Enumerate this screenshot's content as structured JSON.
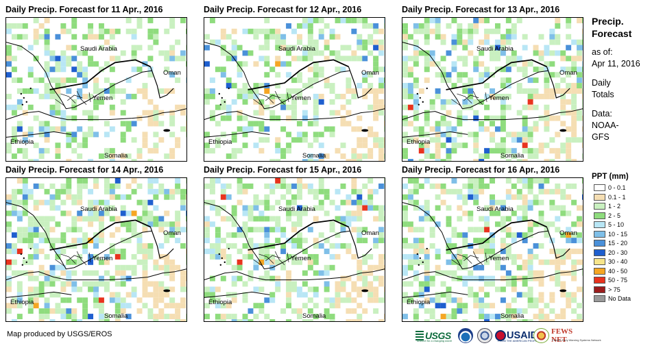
{
  "panels": [
    {
      "title": "Daily Precip. Forecast for 11 Apr., 2016"
    },
    {
      "title": "Daily Precip. Forecast for 12 Apr., 2016"
    },
    {
      "title": "Daily Precip. Forecast for 13 Apr., 2016"
    },
    {
      "title": "Daily Precip. Forecast for 14 Apr., 2016"
    },
    {
      "title": "Daily Precip. Forecast for 15 Apr., 2016"
    },
    {
      "title": "Daily Precip. Forecast for 16 Apr., 2016"
    }
  ],
  "map_labels": {
    "saudi": "Saudi Arabia",
    "oman": "Oman",
    "yemen": "Yemen",
    "ethiopia": "Ethiopia",
    "somalia": "Somalia"
  },
  "legend": {
    "title_line1": "Precip.",
    "title_line2": "Forecast",
    "as_of_label": "as of:",
    "as_of_date": "Apr 11, 2016",
    "daily_line1": "Daily",
    "daily_line2": "Totals",
    "data_line1": "Data:",
    "data_line2": "NOAA-",
    "data_line3": "GFS",
    "ppt_title": "PPT (mm)",
    "classes": [
      {
        "label": "0 - 0.1",
        "color": "#ffffff"
      },
      {
        "label": "0.1 - 1",
        "color": "#f5deb3"
      },
      {
        "label": "1 - 2",
        "color": "#c9f0c0"
      },
      {
        "label": "2 - 5",
        "color": "#8fdc7e"
      },
      {
        "label": "5 - 10",
        "color": "#b8e6f5"
      },
      {
        "label": "10 - 15",
        "color": "#7fbfe8"
      },
      {
        "label": "15 - 20",
        "color": "#4a90d9"
      },
      {
        "label": "20 - 30",
        "color": "#1f5fcf"
      },
      {
        "label": "30 - 40",
        "color": "#f7e58a"
      },
      {
        "label": "40 - 50",
        "color": "#f5a623"
      },
      {
        "label": "50 - 75",
        "color": "#e8331e"
      },
      {
        "label": "> 75",
        "color": "#9b1c1c"
      },
      {
        "label": "No Data",
        "color": "#999999"
      }
    ]
  },
  "credit": "Map produced by USGS/EROS",
  "logos": {
    "usgs": "USGS",
    "usgs_tagline": "science for a changing world",
    "usaid": "USAID",
    "usaid_tagline": "FROM THE AMERICAN PEOPLE",
    "fews": "FEWS NET",
    "fews_tagline": "Famine Early Warning Systems Network"
  }
}
